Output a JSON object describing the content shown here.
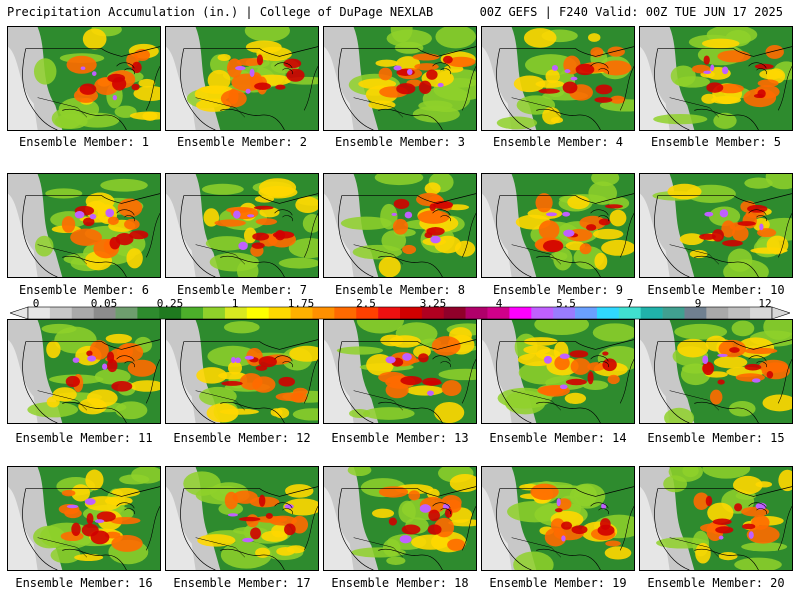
{
  "header": {
    "left": "Precipitation Accumulation (in.) | College of DuPage NEXLAB",
    "right": "00Z GEFS | F240 Valid: 00Z TUE JUN 17 2025"
  },
  "members": [
    "Ensemble Member: 1",
    "Ensemble Member: 2",
    "Ensemble Member: 3",
    "Ensemble Member: 4",
    "Ensemble Member: 5",
    "Ensemble Member: 6",
    "Ensemble Member: 7",
    "Ensemble Member: 8",
    "Ensemble Member: 9",
    "Ensemble Member: 10",
    "Ensemble Member: 11",
    "Ensemble Member: 12",
    "Ensemble Member: 13",
    "Ensemble Member: 14",
    "Ensemble Member: 15",
    "Ensemble Member: 16",
    "Ensemble Member: 17",
    "Ensemble Member: 18",
    "Ensemble Member: 19",
    "Ensemble Member: 20"
  ],
  "colorbar": {
    "labels": [
      "0",
      "0.05",
      "0.25",
      "1",
      "1.75",
      "2.5",
      "3.25",
      "4",
      "5.5",
      "7",
      "9",
      "12"
    ],
    "colors": [
      "#e6e6e6",
      "#c8c8c8",
      "#aaaaaa",
      "#8c8c8c",
      "#6e9e6e",
      "#2e8b2e",
      "#1f7a1f",
      "#4caf2a",
      "#8fd12a",
      "#d8e820",
      "#ffff00",
      "#ffd700",
      "#ffb000",
      "#ff9000",
      "#ff6a00",
      "#ff4000",
      "#ee1010",
      "#d00000",
      "#b00020",
      "#90002a",
      "#b0006a",
      "#d0008a",
      "#ff00ff",
      "#c060ff",
      "#9a7cff",
      "#6aa0ff",
      "#30d8ff",
      "#40e0d0",
      "#20b2aa",
      "#40a090",
      "#708090",
      "#a9a9a9",
      "#c0c0c0",
      "#d8d8d8"
    ]
  },
  "colors": {
    "land_green": "#2e8b2e",
    "gray_dry": "#c8c8c8",
    "heavy_red": "#ee1010",
    "extreme_magenta": "#c060ff",
    "borders": "#000000"
  }
}
